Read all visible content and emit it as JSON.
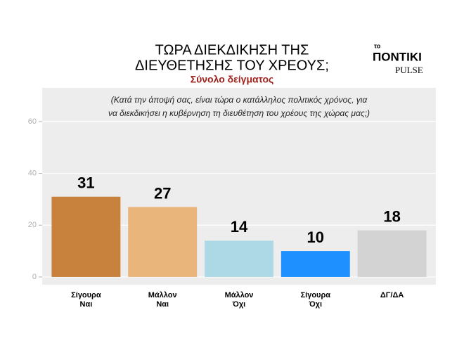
{
  "chart_data": {
    "type": "bar",
    "title": [
      "ΤΩΡΑ ΔΙΕΚΔΙΚΗΣΗ ΤΗΣ",
      "ΔΙΕΥΘΕΤΗΣΗΣ ΤΟΥ ΧΡΕΟΥΣ;"
    ],
    "subtitle": "Σύνολο δείγματος",
    "annotation": [
      "(Κατά την άποψή σας, είναι τώρα ο κατάλληλος πολιτικός χρόνος, για",
      "να διεκδικήσει η κυβέρνηση τη διευθέτηση του χρέους της χώρας μας;)"
    ],
    "logo": [
      "το",
      "ΠΟΝΤΙΚΙ",
      "PULSE"
    ],
    "categories": [
      [
        "Σίγουρα",
        "Ναι"
      ],
      [
        "Μάλλον",
        "Ναι"
      ],
      [
        "Μάλλον",
        "Όχι"
      ],
      [
        "Σίγουρα",
        "Όχι"
      ],
      [
        "ΔΓ/ΔΑ"
      ]
    ],
    "values": [
      31,
      27,
      14,
      10,
      18
    ],
    "colors": [
      "#c8823e",
      "#e9b57a",
      "#add8e6",
      "#1e90ff",
      "#d3d3d3"
    ],
    "ylim": [
      -3,
      73
    ],
    "yticks": [
      0,
      20,
      40,
      60
    ],
    "grid": true
  }
}
